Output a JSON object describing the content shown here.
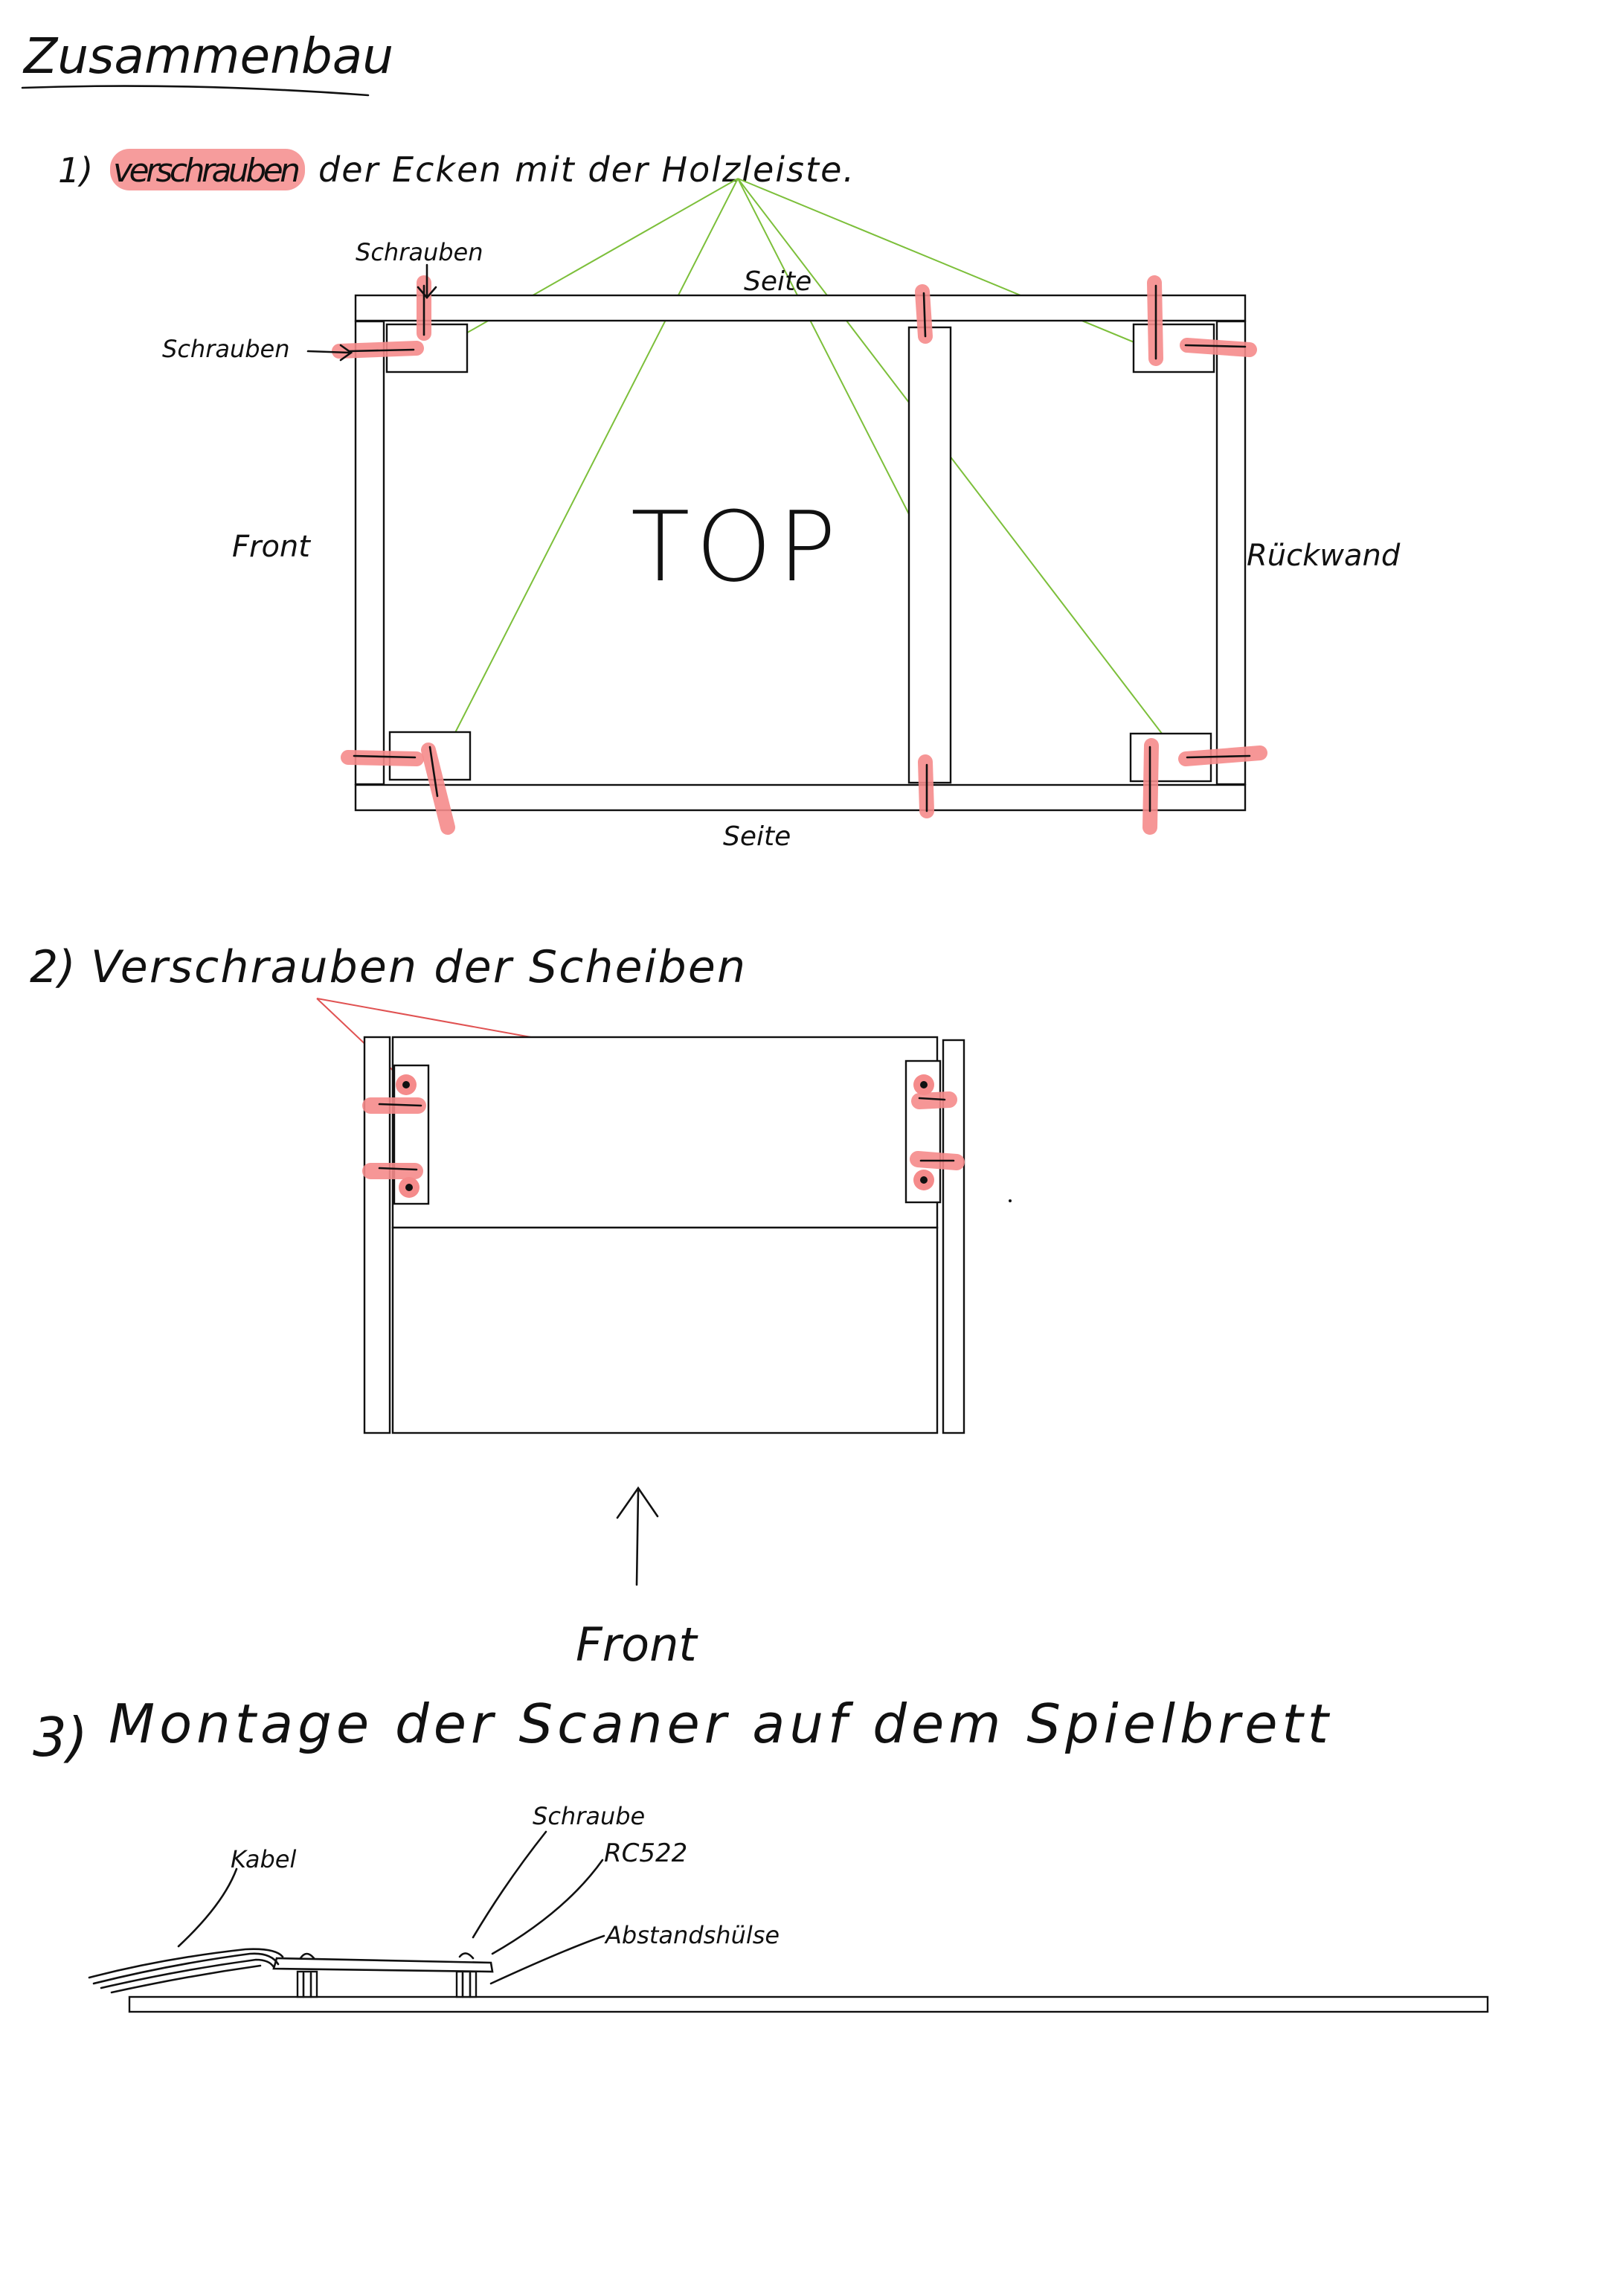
{
  "title": "Zusammenbau",
  "step1": {
    "number": "1)",
    "highlight_word": "verschrauben",
    "rest": "der Ecken mit der Holzleiste.",
    "label_screws_top": "Schrauben",
    "label_screws_left": "Schrauben",
    "label_side_top": "Seite",
    "label_side_bottom": "Seite",
    "label_front": "Front",
    "label_back": "Rückwand",
    "label_center": "TOP"
  },
  "step2": {
    "number": "2)",
    "text": "Verschrauben der Scheiben",
    "label_front": "Front"
  },
  "step3": {
    "number": "3)",
    "text": "Montage der Scaner auf dem Spielbrett",
    "label_cable": "Kabel",
    "label_screw": "Schraube",
    "label_module": "RC522",
    "label_spacer": "Abstandshülse"
  },
  "colors": {
    "highlight": "#f58b8b",
    "leader_green": "#7cbf3a",
    "leader_red": "#e05252",
    "ink": "#111111"
  }
}
